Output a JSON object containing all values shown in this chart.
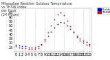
{
  "title": "Milwaukee Weather Outdoor Temperature\nvs THSW Index\nper Hour\n(24 Hours)",
  "legend_labels": [
    "Outdoor Temp",
    "THSW Index"
  ],
  "hours": [
    0,
    1,
    2,
    3,
    4,
    5,
    6,
    7,
    8,
    9,
    10,
    11,
    12,
    13,
    14,
    15,
    16,
    17,
    18,
    19,
    20,
    21,
    22,
    23
  ],
  "outdoor_temp": [
    28,
    27,
    26,
    26,
    25,
    25,
    25,
    26,
    29,
    33,
    38,
    43,
    48,
    52,
    54,
    53,
    50,
    46,
    42,
    38,
    35,
    33,
    31,
    29
  ],
  "thsw_index": [
    26,
    25,
    24,
    24,
    23,
    23,
    23,
    24,
    28,
    34,
    42,
    50,
    57,
    63,
    65,
    62,
    56,
    49,
    43,
    37,
    33,
    30,
    28,
    27
  ],
  "ylim": [
    20,
    70
  ],
  "xlim": [
    -0.5,
    23.5
  ],
  "bg_color": "#ffffff",
  "grid_color": "#cccccc",
  "outdoor_color": "#0000cc",
  "thsw_color": "#cc0000",
  "marker_size": 1.5,
  "tick_fontsize": 3.5,
  "title_fontsize": 3.5,
  "yticks": [
    25,
    30,
    35,
    40,
    45,
    50,
    55,
    60,
    65
  ],
  "xticks": [
    0,
    1,
    2,
    3,
    4,
    5,
    6,
    7,
    8,
    9,
    10,
    11,
    12,
    13,
    14,
    15,
    16,
    17,
    18,
    19,
    20,
    21,
    22,
    23
  ],
  "vgrid_positions": [
    0,
    3,
    6,
    9,
    12,
    15,
    18,
    21,
    23
  ]
}
